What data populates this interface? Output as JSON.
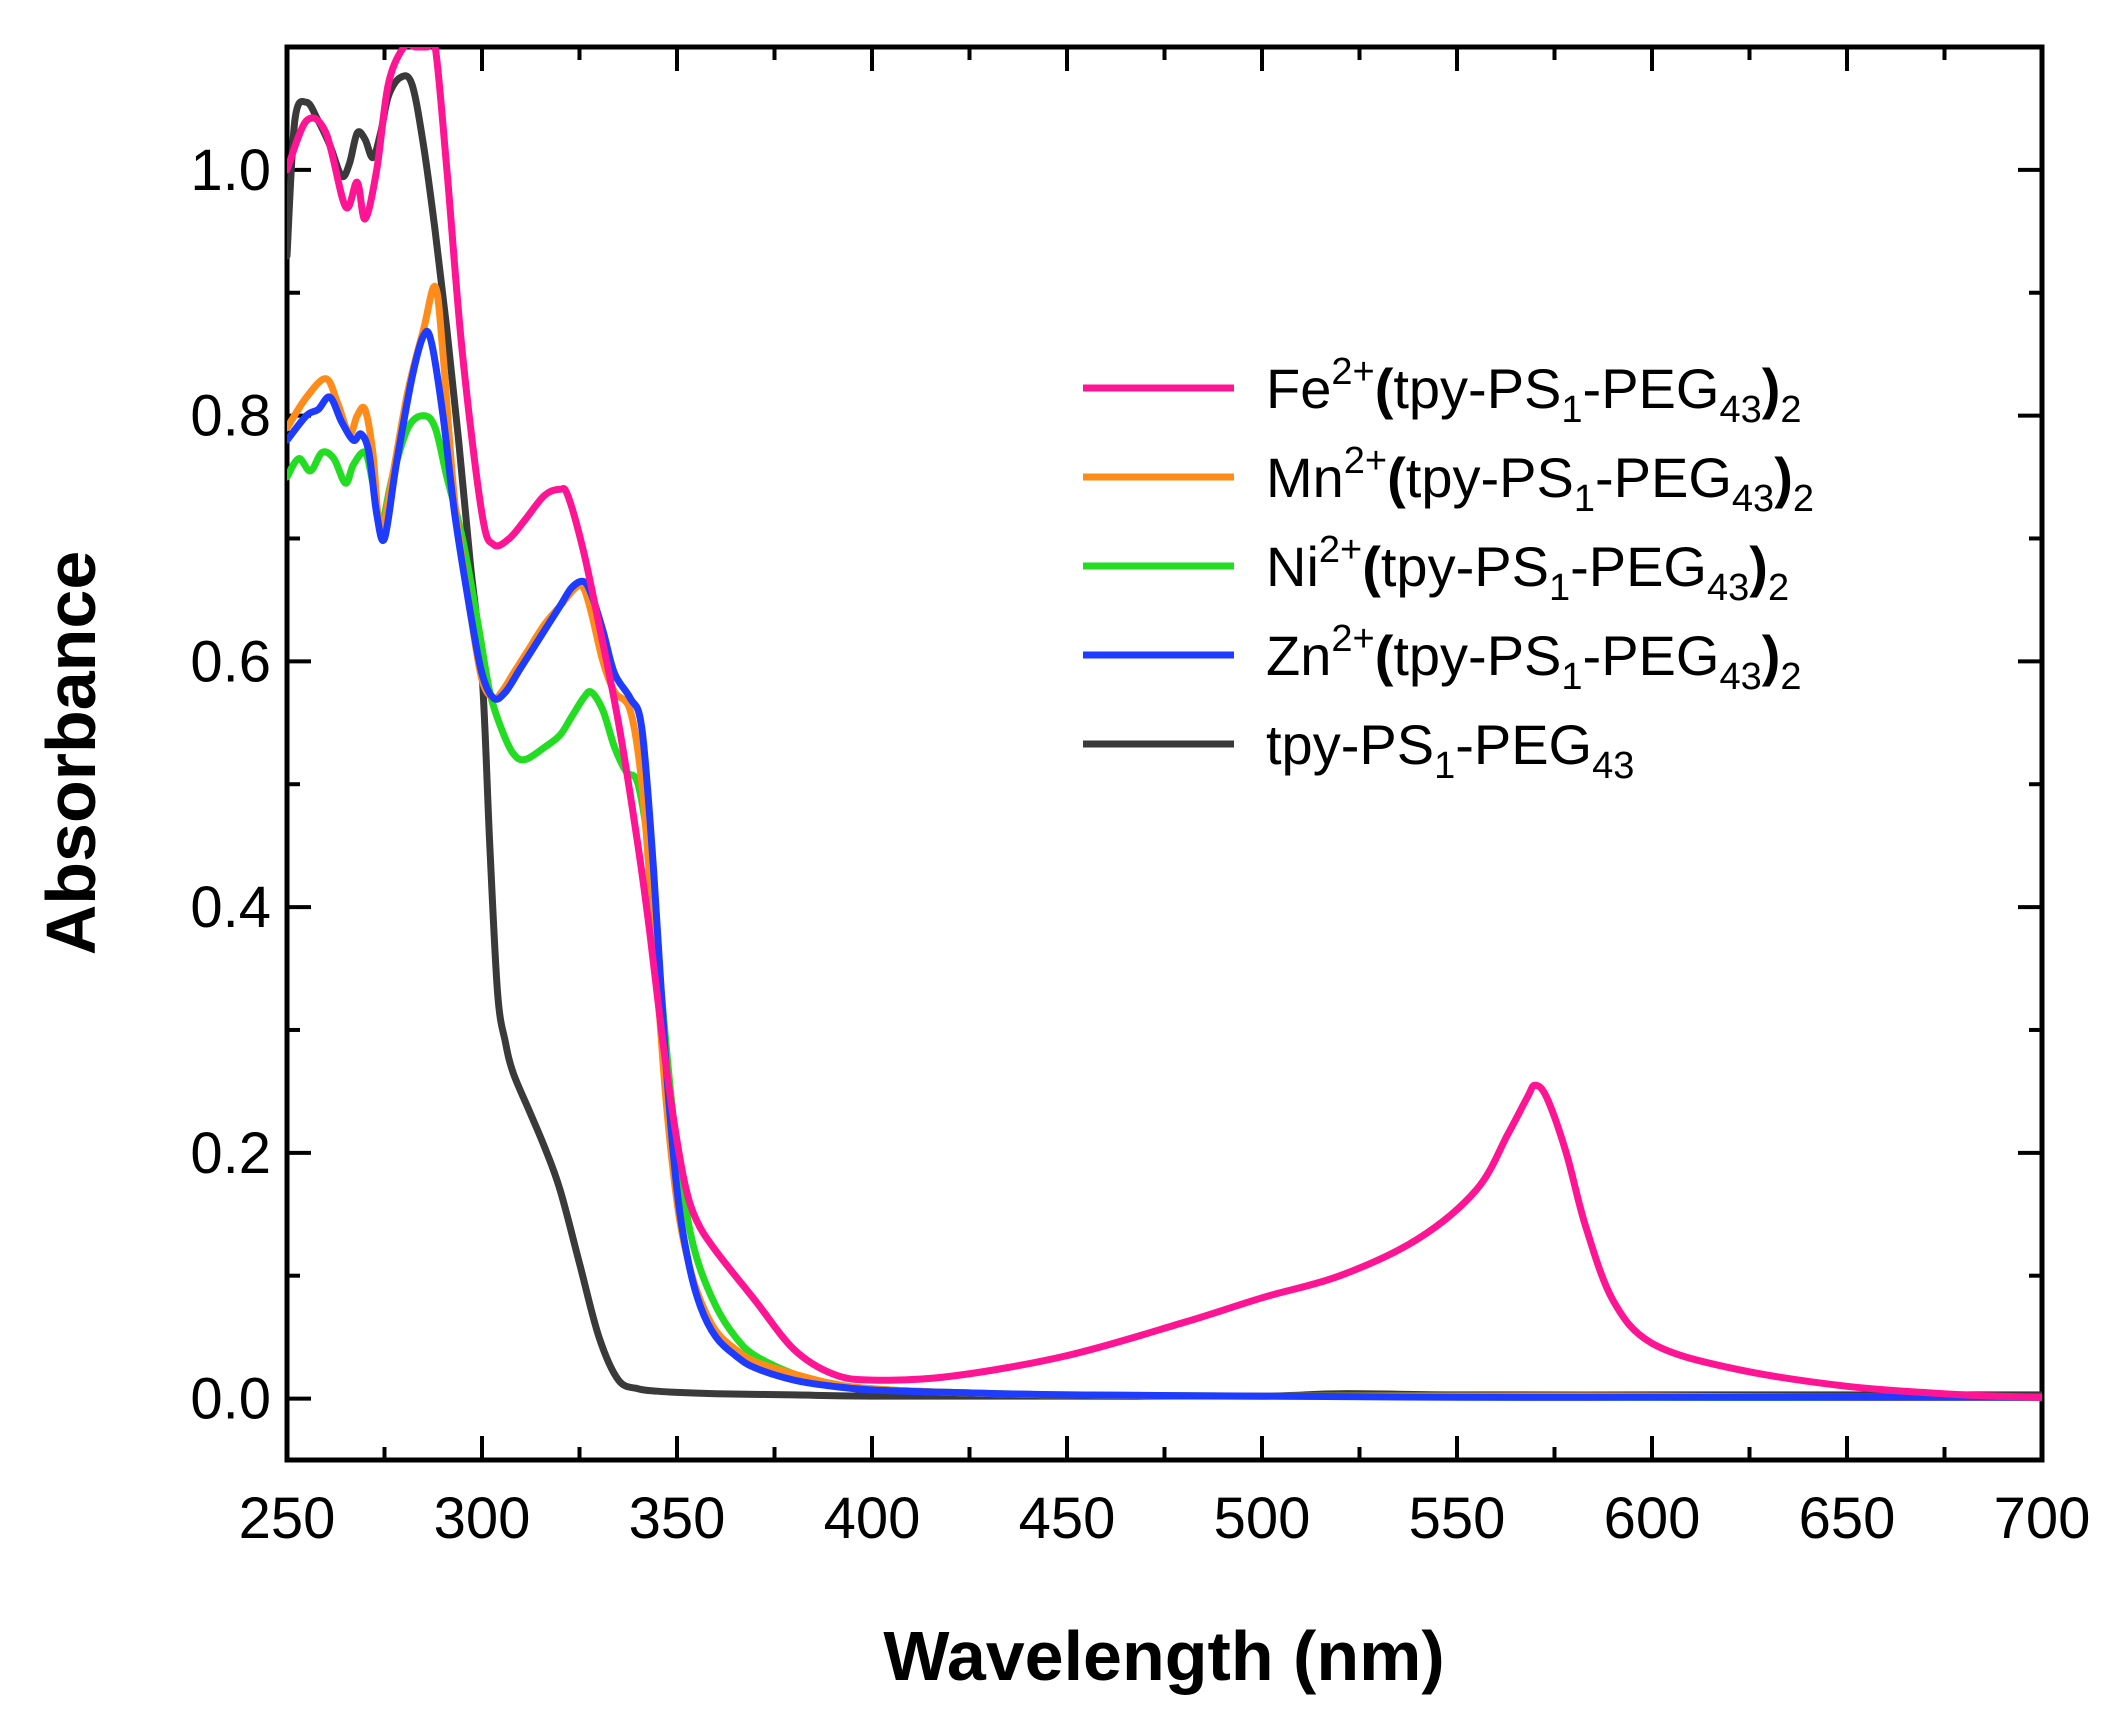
{
  "chart_data": {
    "type": "line",
    "title": "",
    "xlabel": "Wavelength (nm)",
    "ylabel": "Absorbance",
    "xlim": [
      250,
      700
    ],
    "ylim": [
      -0.05,
      1.1
    ],
    "x_ticks": [
      250,
      300,
      350,
      400,
      450,
      500,
      550,
      600,
      650,
      700
    ],
    "x_tick_labels": [
      "250",
      "300",
      "350",
      "400",
      "450",
      "500",
      "550",
      "600",
      "650",
      "700"
    ],
    "y_ticks": [
      0.0,
      0.2,
      0.4,
      0.6,
      0.8,
      1.0
    ],
    "y_tick_labels": [
      "0.0",
      "0.2",
      "0.4",
      "0.6",
      "0.8",
      "1.0"
    ],
    "grid": false,
    "legend_position": "right",
    "series": [
      {
        "name": "Fe2+(tpy-PS1-PEG43)2",
        "legend": {
          "metal": "Fe",
          "charge": "2+",
          "sub1": "1",
          "sub2": "43",
          "outer": "2"
        },
        "color": "#ff1493",
        "x": [
          250,
          255,
          260,
          265,
          268,
          270,
          273,
          276,
          280,
          283,
          286,
          288,
          291,
          295,
          300,
          303,
          307,
          311,
          316,
          320,
          322,
          326,
          330,
          335,
          340,
          343,
          346,
          349,
          352,
          355,
          360,
          370,
          380,
          390,
          400,
          420,
          450,
          480,
          500,
          520,
          540,
          555,
          563,
          568,
          570,
          573,
          578,
          583,
          590,
          600,
          620,
          650,
          680,
          700
        ],
        "y": [
          1.0,
          1.04,
          1.03,
          0.97,
          0.99,
          0.96,
          1.0,
          1.07,
          1.1,
          1.1,
          1.1,
          1.1,
          1.0,
          0.85,
          0.72,
          0.695,
          0.7,
          0.715,
          0.735,
          0.74,
          0.735,
          0.69,
          0.63,
          0.55,
          0.45,
          0.38,
          0.3,
          0.23,
          0.175,
          0.145,
          0.12,
          0.08,
          0.04,
          0.02,
          0.015,
          0.018,
          0.035,
          0.062,
          0.082,
          0.1,
          0.13,
          0.17,
          0.215,
          0.245,
          0.255,
          0.245,
          0.2,
          0.14,
          0.08,
          0.045,
          0.025,
          0.01,
          0.003,
          0.001
        ]
      },
      {
        "name": "Mn2+(tpy-PS1-PEG43)2",
        "legend": {
          "metal": "Mn",
          "charge": "2+",
          "sub1": "1",
          "sub2": "43",
          "outer": "2"
        },
        "color": "#ff8c1a",
        "x": [
          250,
          255,
          260,
          263,
          266,
          268,
          270,
          272,
          274,
          277,
          281,
          285,
          288,
          290,
          293,
          297,
          300,
          303,
          305,
          308,
          312,
          316,
          320,
          324,
          326,
          328,
          331,
          334,
          338,
          341,
          344,
          347,
          350,
          353,
          356,
          360,
          365,
          370,
          380,
          390,
          400,
          420,
          450,
          500,
          550,
          600,
          650,
          700
        ],
        "y": [
          0.79,
          0.815,
          0.83,
          0.81,
          0.785,
          0.8,
          0.805,
          0.77,
          0.705,
          0.75,
          0.82,
          0.87,
          0.905,
          0.85,
          0.73,
          0.64,
          0.585,
          0.57,
          0.575,
          0.59,
          0.61,
          0.63,
          0.645,
          0.66,
          0.66,
          0.64,
          0.6,
          0.575,
          0.56,
          0.5,
          0.38,
          0.25,
          0.16,
          0.11,
          0.08,
          0.055,
          0.04,
          0.03,
          0.02,
          0.012,
          0.008,
          0.005,
          0.003,
          0.002,
          0.002,
          0.002,
          0.001,
          0.001
        ]
      },
      {
        "name": "Ni2+(tpy-PS1-PEG43)2",
        "legend": {
          "metal": "Ni",
          "charge": "2+",
          "sub1": "1",
          "sub2": "43",
          "outer": "2"
        },
        "color": "#22dd22",
        "x": [
          250,
          253,
          256,
          259,
          262,
          265,
          267,
          270,
          272,
          274,
          277,
          281,
          285,
          288,
          291,
          295,
          299,
          302,
          305,
          308,
          311,
          316,
          320,
          323,
          326,
          328,
          331,
          334,
          337,
          340,
          343,
          346,
          349,
          352,
          355,
          360,
          365,
          370,
          380,
          390,
          400,
          420,
          450,
          500,
          550,
          600,
          650,
          700
        ],
        "y": [
          0.75,
          0.765,
          0.755,
          0.77,
          0.765,
          0.745,
          0.76,
          0.77,
          0.745,
          0.71,
          0.75,
          0.79,
          0.8,
          0.79,
          0.75,
          0.7,
          0.63,
          0.575,
          0.545,
          0.525,
          0.52,
          0.53,
          0.54,
          0.555,
          0.57,
          0.575,
          0.56,
          0.53,
          0.51,
          0.5,
          0.44,
          0.33,
          0.23,
          0.16,
          0.115,
          0.075,
          0.05,
          0.035,
          0.02,
          0.012,
          0.008,
          0.005,
          0.003,
          0.002,
          0.002,
          0.001,
          0.001,
          0.001
        ]
      },
      {
        "name": "Zn2+(tpy-PS1-PEG43)2",
        "legend": {
          "metal": "Zn",
          "charge": "2+",
          "sub1": "1",
          "sub2": "43",
          "outer": "2"
        },
        "color": "#1e3cff",
        "x": [
          250,
          255,
          258,
          261,
          264,
          267,
          269,
          271,
          273,
          275,
          278,
          282,
          285,
          287,
          290,
          293,
          297,
          300,
          303,
          306,
          310,
          315,
          320,
          323,
          326,
          328,
          331,
          334,
          338,
          341,
          344,
          347,
          350,
          353,
          356,
          360,
          365,
          370,
          380,
          390,
          400,
          420,
          450,
          500,
          550,
          600,
          650,
          700
        ],
        "y": [
          0.78,
          0.8,
          0.805,
          0.815,
          0.795,
          0.78,
          0.785,
          0.77,
          0.72,
          0.7,
          0.76,
          0.83,
          0.865,
          0.86,
          0.8,
          0.72,
          0.64,
          0.59,
          0.57,
          0.575,
          0.595,
          0.62,
          0.645,
          0.66,
          0.665,
          0.655,
          0.625,
          0.59,
          0.57,
          0.545,
          0.43,
          0.28,
          0.17,
          0.11,
          0.075,
          0.05,
          0.035,
          0.025,
          0.015,
          0.01,
          0.007,
          0.005,
          0.003,
          0.002,
          0.001,
          0.001,
          0.001,
          0.001
        ]
      },
      {
        "name": "tpy-PS1-PEG43",
        "legend": {
          "metal": "",
          "charge": "",
          "sub1": "1",
          "sub2": "43",
          "outer": ""
        },
        "color": "#3a3a3a",
        "x": [
          250,
          252,
          255,
          258,
          261,
          264,
          266,
          268,
          270,
          272,
          274,
          276,
          279,
          282,
          285,
          288,
          291,
          294,
          297,
          300,
          302,
          304,
          306,
          308,
          312,
          316,
          320,
          325,
          330,
          335,
          340,
          345,
          350,
          360,
          380,
          400,
          450,
          500,
          520,
          550,
          600,
          650,
          700
        ],
        "y": [
          0.93,
          1.04,
          1.055,
          1.04,
          1.02,
          0.995,
          1.005,
          1.03,
          1.025,
          1.01,
          1.03,
          1.06,
          1.075,
          1.07,
          1.02,
          0.95,
          0.87,
          0.78,
          0.68,
          0.59,
          0.45,
          0.33,
          0.29,
          0.265,
          0.235,
          0.205,
          0.17,
          0.11,
          0.05,
          0.015,
          0.008,
          0.006,
          0.005,
          0.004,
          0.003,
          0.002,
          0.002,
          0.002,
          0.004,
          0.003,
          0.003,
          0.003,
          0.003
        ]
      }
    ]
  }
}
